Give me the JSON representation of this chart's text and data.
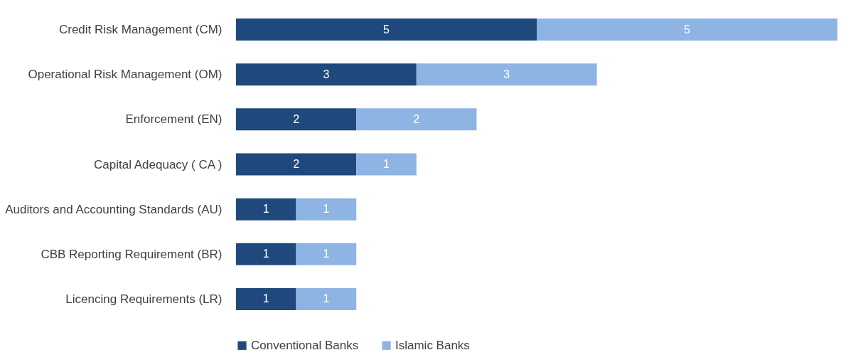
{
  "chart_data": {
    "type": "bar",
    "orientation": "horizontal",
    "stacked": true,
    "data_labels": true,
    "legend": "bottom",
    "categories": [
      "Credit Risk Management (CM)",
      "Operational Risk Management (OM)",
      "Enforcement  (EN)",
      "Capital Adequacy  ( CA )",
      "Auditors and Accounting Standards (AU)",
      "CBB Reporting Requirement (BR)",
      "Licencing Requirements (LR)"
    ],
    "series": [
      {
        "name": "Conventional Banks",
        "color": "#1f497d",
        "values": [
          5,
          3,
          2,
          2,
          1,
          1,
          1
        ]
      },
      {
        "name": "Islamic  Banks",
        "color": "#8eb4e3",
        "values": [
          5,
          3,
          2,
          1,
          1,
          1,
          1
        ]
      }
    ]
  }
}
